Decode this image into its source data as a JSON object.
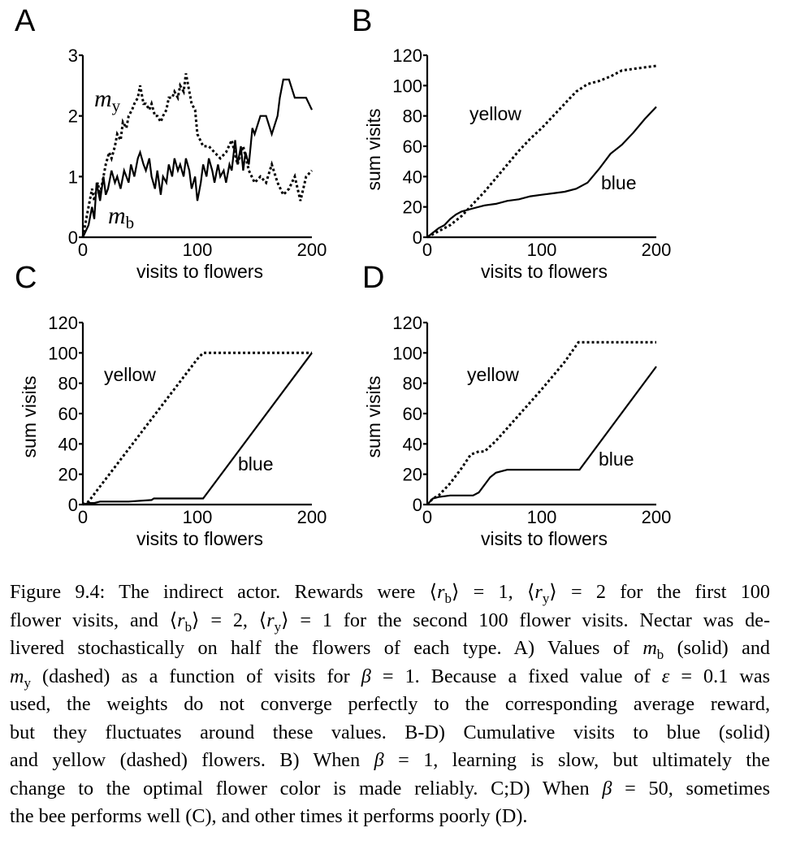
{
  "figure": {
    "panels": [
      {
        "id": "A",
        "letter": "A",
        "xlabel": "visits to flowers",
        "ylabel": "",
        "xticks": [
          "0",
          "100",
          "200"
        ],
        "yticks": [
          "0",
          "1",
          "2",
          "3"
        ],
        "annotations": [
          {
            "math": "m",
            "sub": "y",
            "label": "my"
          },
          {
            "math": "m",
            "sub": "b",
            "label": "mb"
          }
        ]
      },
      {
        "id": "B",
        "letter": "B",
        "xlabel": "visits to flowers",
        "ylabel": "sum visits",
        "xticks": [
          "0",
          "100",
          "200"
        ],
        "yticks": [
          "0",
          "20",
          "40",
          "60",
          "80",
          "100",
          "120"
        ],
        "annotations": [
          {
            "label": "yellow"
          },
          {
            "label": "blue"
          }
        ]
      },
      {
        "id": "C",
        "letter": "C",
        "xlabel": "visits to flowers",
        "ylabel": "sum visits",
        "xticks": [
          "0",
          "100",
          "200"
        ],
        "yticks": [
          "0",
          "20",
          "40",
          "60",
          "80",
          "100",
          "120"
        ],
        "annotations": [
          {
            "label": "yellow"
          },
          {
            "label": "blue"
          }
        ]
      },
      {
        "id": "D",
        "letter": "D",
        "xlabel": "visits to flowers",
        "ylabel": "sum visits",
        "xticks": [
          "0",
          "100",
          "200"
        ],
        "yticks": [
          "0",
          "20",
          "40",
          "60",
          "80",
          "100",
          "120"
        ],
        "annotations": [
          {
            "label": "yellow"
          },
          {
            "label": "blue"
          }
        ]
      }
    ]
  },
  "chart_data": [
    {
      "type": "line",
      "panel": "A",
      "title": "",
      "xlabel": "visits to flowers",
      "ylabel": "",
      "xlim": [
        0,
        200
      ],
      "ylim": [
        0,
        3
      ],
      "grid": false,
      "legend": "none",
      "series": [
        {
          "style": "solid",
          "x": [
            0,
            5,
            8,
            10,
            12,
            15,
            18,
            20,
            22,
            25,
            28,
            30,
            33,
            36,
            40,
            42,
            45,
            48,
            50,
            53,
            55,
            58,
            60,
            63,
            65,
            68,
            70,
            73,
            75,
            78,
            80,
            83,
            85,
            88,
            90,
            93,
            95,
            98,
            100,
            103,
            105,
            108,
            110,
            113,
            115,
            118,
            120,
            123,
            125,
            128,
            130,
            133,
            135,
            138,
            140,
            142,
            145,
            148,
            150,
            155,
            160,
            165,
            170,
            172,
            175,
            180,
            185,
            190,
            195,
            200
          ],
          "y": [
            0,
            0.2,
            0.5,
            0.3,
            0.9,
            0.6,
            1.0,
            0.7,
            0.8,
            1.1,
            0.9,
            1.0,
            0.8,
            1.1,
            0.9,
            1.2,
            1.0,
            1.3,
            1.4,
            1.2,
            1.1,
            1.3,
            1.0,
            0.8,
            1.1,
            0.7,
            1.0,
            0.9,
            1.2,
            1.0,
            1.3,
            1.1,
            1.2,
            1.0,
            1.3,
            1.1,
            0.8,
            1.0,
            0.6,
            0.9,
            1.2,
            1.0,
            1.3,
            1.1,
            0.9,
            1.2,
            1.0,
            1.1,
            0.9,
            1.2,
            1.1,
            1.6,
            1.2,
            1.5,
            1.1,
            1.4,
            1.2,
            1.8,
            1.7,
            2.0,
            2.0,
            1.7,
            2.0,
            2.3,
            2.6,
            2.6,
            2.3,
            2.3,
            2.3,
            2.1
          ],
          "name": ""
        },
        {
          "style": "dashed",
          "x": [
            0,
            3,
            5,
            8,
            10,
            13,
            15,
            18,
            20,
            23,
            25,
            28,
            30,
            33,
            35,
            38,
            40,
            43,
            45,
            48,
            50,
            53,
            55,
            58,
            60,
            63,
            65,
            68,
            70,
            73,
            75,
            78,
            80,
            83,
            85,
            88,
            90,
            93,
            95,
            98,
            100,
            105,
            110,
            115,
            120,
            125,
            130,
            135,
            140,
            145,
            150,
            155,
            160,
            165,
            170,
            175,
            180,
            185,
            190,
            195,
            200
          ],
          "y": [
            0,
            0.3,
            0.5,
            0.8,
            0.6,
            0.9,
            0.7,
            1.0,
            1.2,
            1.4,
            1.3,
            1.5,
            1.7,
            1.6,
            1.9,
            1.8,
            2.0,
            2.1,
            2.2,
            2.3,
            2.5,
            2.2,
            2.2,
            2.1,
            2.2,
            2.0,
            2.0,
            1.9,
            2.0,
            2.1,
            2.3,
            2.3,
            2.4,
            2.3,
            2.5,
            2.4,
            2.7,
            2.4,
            2.2,
            2.1,
            1.7,
            1.5,
            1.5,
            1.4,
            1.3,
            1.4,
            1.6,
            1.2,
            1.5,
            1.1,
            0.9,
            1.0,
            0.9,
            1.2,
            0.9,
            0.7,
            0.8,
            1.0,
            0.6,
            1.0,
            1.1
          ],
          "name": ""
        }
      ]
    },
    {
      "type": "line",
      "panel": "B",
      "title": "",
      "xlabel": "visits to flowers",
      "ylabel": "sum visits",
      "xlim": [
        0,
        200
      ],
      "ylim": [
        0,
        120
      ],
      "grid": false,
      "legend": "none",
      "series": [
        {
          "style": "solid",
          "x": [
            0,
            5,
            10,
            15,
            20,
            25,
            30,
            40,
            50,
            60,
            70,
            80,
            90,
            100,
            110,
            120,
            130,
            140,
            150,
            160,
            170,
            180,
            190,
            200
          ],
          "y": [
            0,
            3,
            6,
            8,
            12,
            15,
            17,
            19,
            21,
            22,
            24,
            25,
            27,
            28,
            29,
            30,
            32,
            36,
            45,
            55,
            61,
            69,
            78,
            86
          ],
          "name": ""
        },
        {
          "style": "dashed",
          "x": [
            0,
            10,
            20,
            30,
            40,
            50,
            60,
            70,
            80,
            90,
            100,
            110,
            120,
            130,
            140,
            150,
            160,
            170,
            180,
            190,
            200
          ],
          "y": [
            0,
            4,
            8,
            14,
            22,
            30,
            39,
            48,
            57,
            65,
            72,
            80,
            88,
            96,
            101,
            103,
            106,
            110,
            111,
            112,
            113
          ],
          "name": ""
        }
      ]
    },
    {
      "type": "line",
      "panel": "C",
      "title": "",
      "xlabel": "visits to flowers",
      "ylabel": "sum visits",
      "xlim": [
        0,
        200
      ],
      "ylim": [
        0,
        120
      ],
      "grid": false,
      "legend": "none",
      "series": [
        {
          "style": "solid",
          "x": [
            0,
            5,
            10,
            15,
            20,
            40,
            60,
            62,
            80,
            100,
            105,
            200
          ],
          "y": [
            0,
            1,
            1,
            2,
            2,
            2,
            3,
            4,
            4,
            4,
            4,
            100
          ],
          "name": ""
        },
        {
          "style": "dashed",
          "x": [
            0,
            5,
            100,
            105,
            200
          ],
          "y": [
            0,
            2,
            96,
            100,
            100
          ],
          "name": ""
        }
      ]
    },
    {
      "type": "line",
      "panel": "D",
      "title": "",
      "xlabel": "visits to flowers",
      "ylabel": "sum visits",
      "xlim": [
        0,
        200
      ],
      "ylim": [
        0,
        120
      ],
      "grid": false,
      "legend": "none",
      "series": [
        {
          "style": "solid",
          "x": [
            0,
            5,
            10,
            20,
            30,
            40,
            45,
            55,
            60,
            65,
            70,
            80,
            100,
            120,
            133,
            200
          ],
          "y": [
            0,
            4,
            5,
            6,
            6,
            6,
            8,
            18,
            21,
            22,
            23,
            23,
            23,
            23,
            23,
            91
          ],
          "name": ""
        },
        {
          "style": "dashed",
          "x": [
            0,
            5,
            10,
            20,
            30,
            38,
            45,
            50,
            60,
            80,
            100,
            120,
            132,
            140,
            160,
            180,
            200
          ],
          "y": [
            0,
            4,
            6,
            14,
            24,
            33,
            35,
            35,
            42,
            59,
            76,
            94,
            107,
            107,
            107,
            107,
            107
          ],
          "name": ""
        }
      ]
    }
  ],
  "caption": {
    "lines": [
      [
        {
          "t": "Figure 9.4: The indirect actor. Rewards were ⟨"
        },
        {
          "i": "r"
        },
        {
          "sub": "b"
        },
        {
          "t": "⟩ = 1, ⟨"
        },
        {
          "i": "r"
        },
        {
          "sub": "y"
        },
        {
          "t": "⟩ = 2 for the first 100"
        }
      ],
      [
        {
          "t": "flower visits, and ⟨"
        },
        {
          "i": "r"
        },
        {
          "sub": "b"
        },
        {
          "t": "⟩ = 2, ⟨"
        },
        {
          "i": "r"
        },
        {
          "sub": "y"
        },
        {
          "t": "⟩ = 1 for the second 100 flower visits. Nectar was de-"
        }
      ],
      [
        {
          "t": "livered stochastically on half the flowers of each type. A) Values of "
        },
        {
          "i": "m"
        },
        {
          "sub": "b"
        },
        {
          "t": " (solid) and"
        }
      ],
      [
        {
          "i": "m"
        },
        {
          "sub": "y"
        },
        {
          "t": " (dashed) as a function of visits for "
        },
        {
          "i": "β"
        },
        {
          "t": " = 1. Because a fixed value of "
        },
        {
          "i": "ε"
        },
        {
          "t": " = 0.1 was"
        }
      ],
      [
        {
          "t": "used, the weights do not converge perfectly to the corresponding average reward,"
        }
      ],
      [
        {
          "t": "but they fluctuates around these values. B-D) Cumulative visits to blue (solid)"
        }
      ],
      [
        {
          "t": "and yellow (dashed) flowers. B) When "
        },
        {
          "i": "β"
        },
        {
          "t": " = 1, learning is slow, but ultimately the"
        }
      ],
      [
        {
          "t": "change to the optimal flower color is made reliably. C;D) When "
        },
        {
          "i": "β"
        },
        {
          "t": " = 50, sometimes"
        }
      ],
      [
        {
          "t": "the bee performs well (C), and other times it performs poorly (D)."
        }
      ]
    ]
  }
}
